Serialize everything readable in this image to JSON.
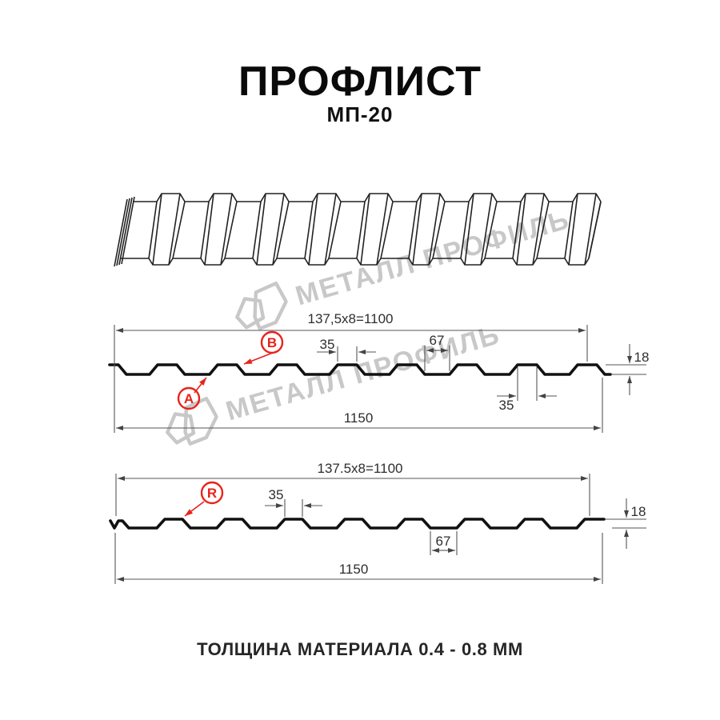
{
  "header": {
    "title": "ПРОФЛИСТ",
    "subtitle": "МП-20"
  },
  "watermark": {
    "text": "МЕТАЛЛ ПРОФИЛЬ",
    "color": "#c8c8c8"
  },
  "profile1": {
    "formula": "137,5x8=1100",
    "total_width": "1150",
    "top_flat": "35",
    "valley": "67",
    "height": "18",
    "top_flat_bottom_dim": "35",
    "label_a": "А",
    "label_b": "В"
  },
  "profile2": {
    "formula": "137.5x8=1100",
    "total_width": "1150",
    "top_flat": "35",
    "valley": "67",
    "height": "18",
    "label_r": "R"
  },
  "footer": {
    "note": "ТОЛЩИНА МАТЕРИАЛА 0.4 - 0.8 ММ"
  },
  "colors": {
    "accent_red": "#e8231c",
    "line": "#111111",
    "dim_line": "#555555",
    "watermark": "#c8c8c8"
  }
}
